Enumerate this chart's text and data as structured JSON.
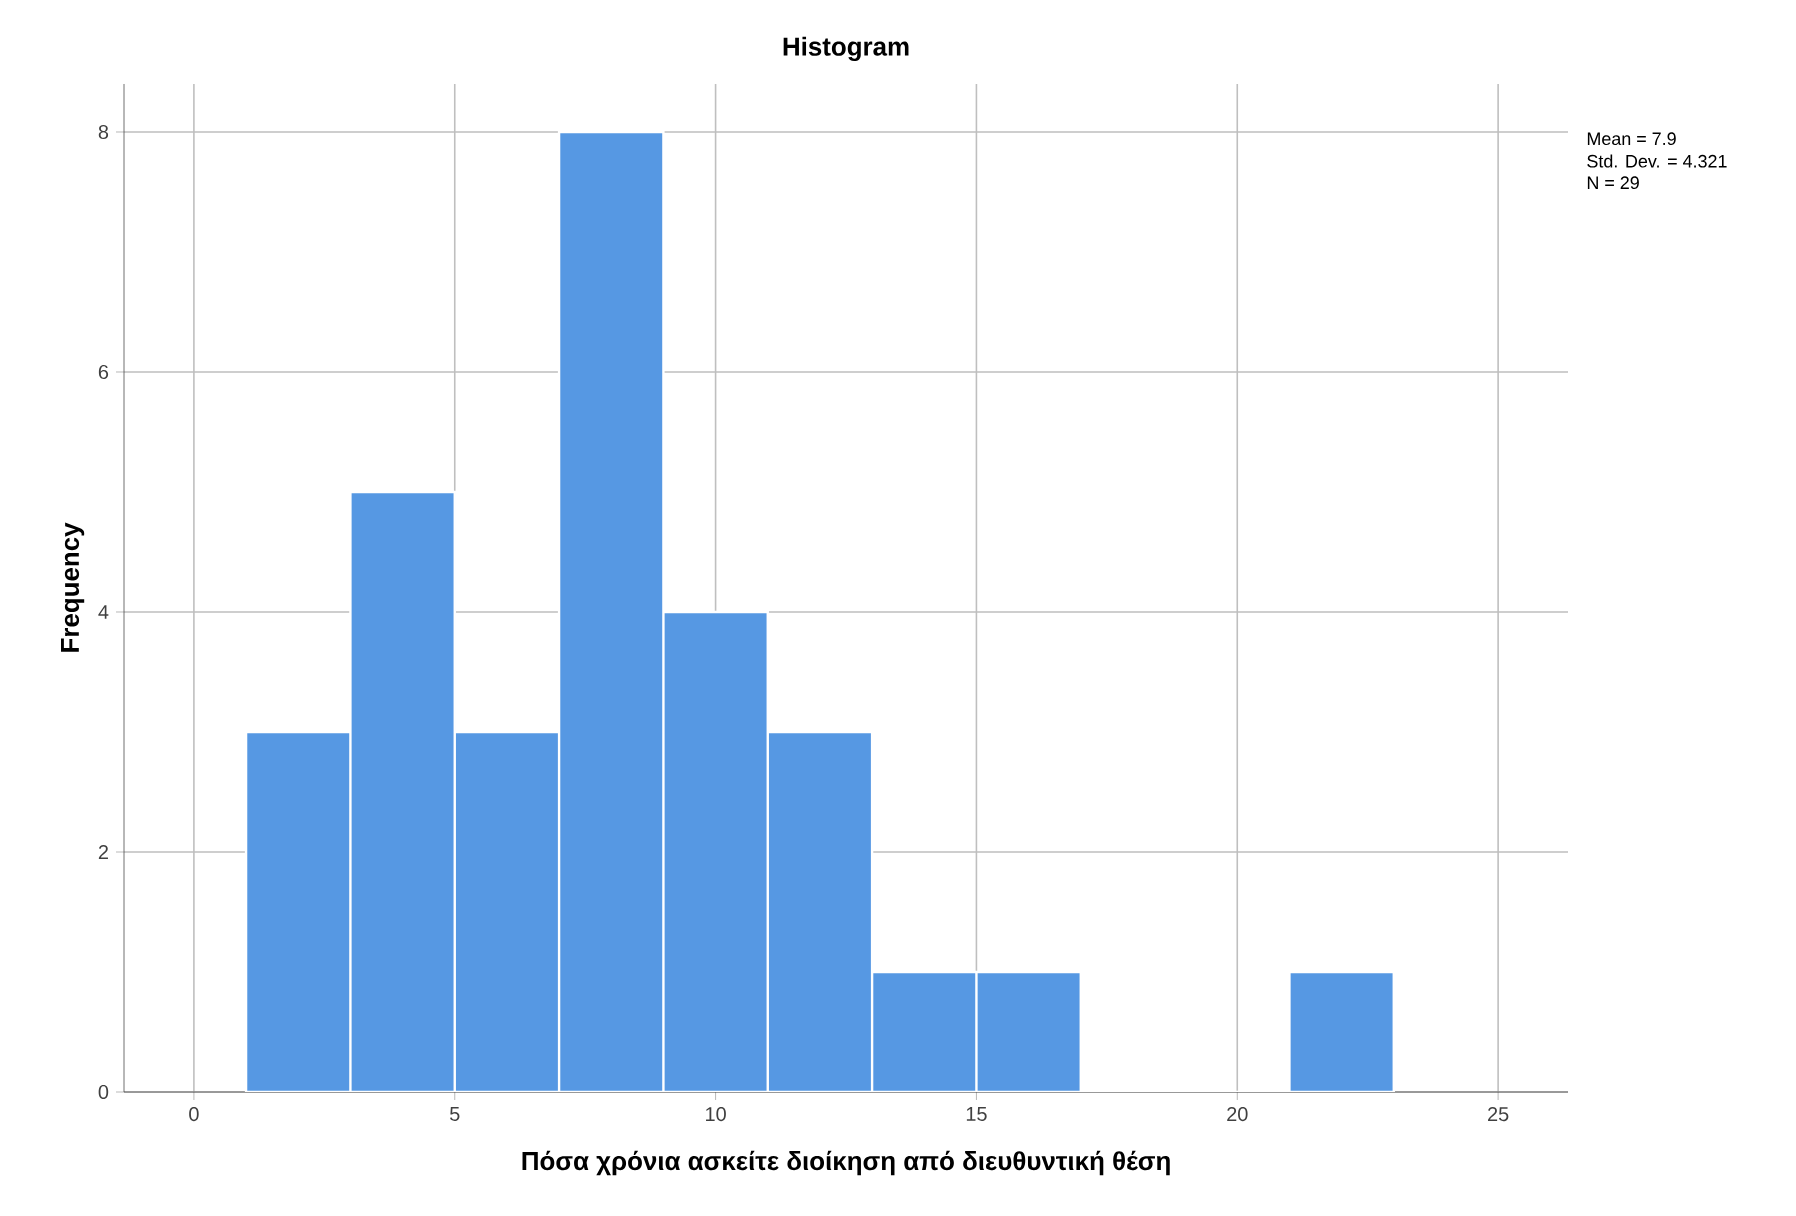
{
  "chart_data": {
    "type": "histogram",
    "title": "Histogram",
    "xlabel": "Πόσα χρόνια ασκείτε διοίκηση από διευθυντική θέση",
    "ylabel": "Frequency",
    "bins": [
      1,
      3,
      5,
      7,
      9,
      11,
      13,
      15,
      17,
      19,
      21,
      23
    ],
    "values": [
      3,
      5,
      3,
      8,
      4,
      3,
      1,
      1,
      0,
      0,
      1
    ],
    "color": "#5698e3",
    "xlim": [
      -1.34,
      26.34
    ],
    "ylim": [
      0,
      8.4
    ],
    "xticks": [
      0,
      5,
      10,
      15,
      20,
      25
    ],
    "yticks": [
      0,
      2,
      4,
      6,
      8
    ],
    "grid": true,
    "annotations": [
      "Mean = 7.9",
      "Std. Dev. = 4.321",
      "N = 29"
    ]
  }
}
